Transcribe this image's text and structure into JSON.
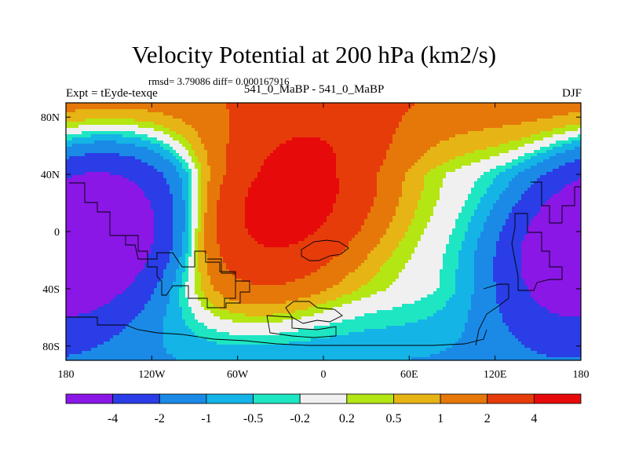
{
  "title": "Velocity Potential at 200 hPa (km2/s)",
  "rmsd_text": "rmsd= 3.79086 diff= 0.000167916",
  "left_label": "Expt = tEyde-texqe",
  "center_label": "541_0_MaBP - 541_0_MaBP",
  "right_label": "DJF",
  "chart_data": {
    "type": "heatmap",
    "projection": "cylindrical-equidistant",
    "title": "Velocity Potential at 200 hPa (km2/s)",
    "xlim": [
      -180,
      180
    ],
    "ylim": [
      -90,
      90
    ],
    "x_ticks": [
      -180,
      -120,
      -60,
      0,
      60,
      120,
      180
    ],
    "x_tick_labels": [
      "180",
      "120W",
      "60W",
      "0",
      "60E",
      "120E",
      "180"
    ],
    "y_ticks": [
      80,
      40,
      0,
      -40,
      -80
    ],
    "y_tick_labels": [
      "80N",
      "40N",
      "0",
      "40S",
      "80S"
    ],
    "contour_levels": [
      -4,
      -2,
      -1,
      -0.5,
      -0.2,
      0.2,
      0.5,
      1,
      2,
      4
    ],
    "colorbar_labels": [
      "-4",
      "-2",
      "-1",
      "-0.5",
      "-0.2",
      "0.2",
      "0.5",
      "1",
      "2",
      "4"
    ],
    "colors": [
      "#8a17e6",
      "#2a3de6",
      "#1a8ae6",
      "#14b4e6",
      "#1ee6c3",
      "#f0f0f0",
      "#b4e614",
      "#e6b414",
      "#e6780a",
      "#e63c0a",
      "#e60a0a"
    ],
    "field_model": {
      "description": "approximate field estimated from the plot: positive centre over Africa / Atlantic, negative centres over the Americas-Pacific and Asia-Australia",
      "centers": [
        {
          "name": "positive-center",
          "lon": -25,
          "lat": 22,
          "amplitude": 5.5,
          "lon_width": 60,
          "lat_width": 60
        },
        {
          "name": "negative-center-west",
          "lon": -150,
          "lat": -10,
          "amplitude": -5,
          "lon_width": 55,
          "lat_width": 55
        },
        {
          "name": "negative-center-east",
          "lon": 175,
          "lat": -5,
          "amplitude": -5,
          "lon_width": 50,
          "lat_width": 55
        }
      ],
      "zonal_tilt": 0.6,
      "polar_offset_north": 1.6,
      "polar_offset_south": -1.0
    }
  }
}
